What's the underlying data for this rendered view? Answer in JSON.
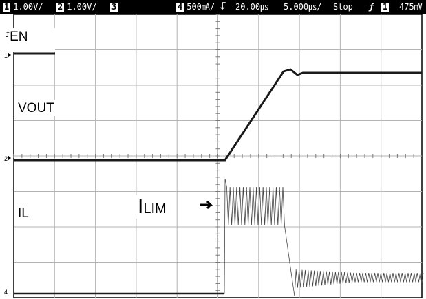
{
  "toolbar": {
    "ch1_num": "1",
    "ch1_scale": "1.00V/",
    "ch2_num": "2",
    "ch2_scale": "1.00V/",
    "ch3_num": "3",
    "ch4_num": "4",
    "ch4_scale": "500㎃/",
    "trig_icon": "trigger-edge-icon",
    "timebase_pos": "20.00㎲",
    "timebase_scale": "5.000㎲/",
    "run_state": "Stop",
    "slope_icon": "rising-slope-icon",
    "trig_channel": "1",
    "trig_level": "475㎷"
  },
  "labels": {
    "en": "EN",
    "vout": "VOUT",
    "il": "IL",
    "ilim_main": "I",
    "ilim_sub": "LIM"
  },
  "markers": {
    "ch1": "1",
    "ch2": "2",
    "ch4": "4"
  },
  "colors": {
    "trace": "#1a1a1a",
    "grid": "#b4b4b4",
    "background": "#ffffff",
    "toolbar": "#000000"
  }
}
